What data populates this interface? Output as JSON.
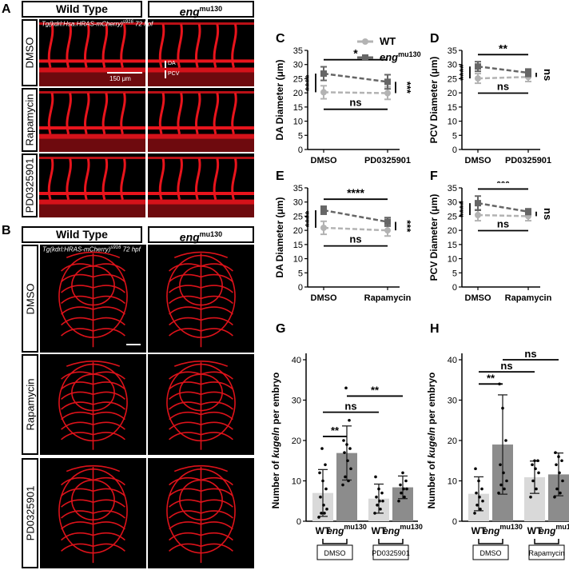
{
  "panel_letters": {
    "A": "A",
    "B": "B",
    "C": "C",
    "D": "D",
    "E": "E",
    "F": "F",
    "G": "G",
    "H": "H"
  },
  "panelA": {
    "col_headers": [
      "Wild Type",
      "eng"
    ],
    "col_header_sup": "mu130",
    "row_labels": [
      "DMSO",
      "Rapamycin",
      "PD0325901"
    ],
    "caption": "Tg(kdrl:Hsa.HRAS-mCherry)",
    "caption_sup": "s916",
    "caption_tail": "72 hpf",
    "scale_label": "150 μm",
    "da_label": "DA",
    "pcv_label": "PCV"
  },
  "panelB": {
    "col_headers": [
      "Wild Type",
      "eng"
    ],
    "col_header_sup": "mu130",
    "row_labels": [
      "DMSO",
      "Rapamycin",
      "PD0325901"
    ],
    "caption": "Tg(kdrl:HRAS-mCherry)",
    "caption_sup": "s916",
    "caption_tail": "72 hpf"
  },
  "legend": {
    "wt": "WT",
    "eng": "eng",
    "eng_sup": "mu130"
  },
  "colors": {
    "wt": "#b3b3b3",
    "eng": "#666666",
    "bar_wt": "#d9d9d9",
    "bar_eng": "#8c8c8c",
    "vessel": "#e8141c"
  },
  "chart_data": [
    {
      "id": "C",
      "type": "line",
      "ylabel": "DA Diameter (μm)",
      "ylim": [
        0,
        35
      ],
      "yticks": [
        0,
        5,
        10,
        15,
        20,
        25,
        30,
        35
      ],
      "categories": [
        "DMSO",
        "PD0325901"
      ],
      "series": [
        {
          "name": "WT",
          "values": [
            20.2,
            19.9
          ],
          "err": [
            2.3,
            2.2
          ]
        },
        {
          "name": "eng mu130",
          "values": [
            26.8,
            23.9
          ],
          "err": [
            2.4,
            2.5
          ]
        }
      ],
      "annotations": {
        "top": "*",
        "bottom": "ns",
        "left": "****",
        "right": "***"
      }
    },
    {
      "id": "D",
      "type": "line",
      "ylabel": "PCV Diameter (μm)",
      "ylim": [
        0,
        35
      ],
      "yticks": [
        0,
        5,
        10,
        15,
        20,
        25,
        30,
        35
      ],
      "categories": [
        "DMSO",
        "PD0325901"
      ],
      "series": [
        {
          "name": "WT",
          "values": [
            25.1,
            25.6
          ],
          "err": [
            1.7,
            1.6
          ]
        },
        {
          "name": "eng mu130",
          "values": [
            29.3,
            27.1
          ],
          "err": [
            1.7,
            1.3
          ]
        }
      ],
      "annotations": {
        "top": "**",
        "bottom": "ns",
        "left": "****",
        "right": "ns"
      }
    },
    {
      "id": "E",
      "type": "line",
      "ylabel": "DA Diameter (μm)",
      "ylim": [
        0,
        35
      ],
      "yticks": [
        0,
        5,
        10,
        15,
        20,
        25,
        30,
        35
      ],
      "categories": [
        "DMSO",
        "Rapamycin"
      ],
      "series": [
        {
          "name": "WT",
          "values": [
            20.9,
            20.0
          ],
          "err": [
            2.3,
            2.0
          ]
        },
        {
          "name": "eng mu130",
          "values": [
            27.1,
            23.0
          ],
          "err": [
            1.4,
            1.5
          ]
        }
      ],
      "annotations": {
        "top": "****",
        "bottom": "ns",
        "left": "****",
        "right": "***"
      }
    },
    {
      "id": "F",
      "type": "line",
      "ylabel": "PCV Diameter (μm)",
      "ylim": [
        0,
        35
      ],
      "yticks": [
        0,
        5,
        10,
        15,
        20,
        25,
        30,
        35
      ],
      "categories": [
        "DMSO",
        "Rapamycin"
      ],
      "series": [
        {
          "name": "WT",
          "values": [
            25.4,
            25.0
          ],
          "err": [
            2.0,
            1.6
          ]
        },
        {
          "name": "eng mu130",
          "values": [
            29.6,
            26.6
          ],
          "err": [
            2.5,
            1.0
          ]
        }
      ],
      "annotations": {
        "top": "***",
        "bottom": "ns",
        "left": "****",
        "right": "ns"
      }
    },
    {
      "id": "G",
      "type": "bar",
      "ylabel_pre": "Number of ",
      "ylabel_it": "kugeln",
      "ylabel_post": " per embryo",
      "ylim": [
        0,
        40
      ],
      "yticks": [
        0,
        10,
        20,
        30,
        40
      ],
      "bar_labels": [
        "WT",
        "eng",
        "WT",
        "eng"
      ],
      "bar_label_sup": "mu130",
      "groups": [
        "DMSO",
        "PD0325901"
      ],
      "values": [
        7.0,
        16.9,
        5.6,
        8.4
      ],
      "err": [
        5.8,
        6.7,
        3.6,
        2.8
      ],
      "points": [
        [
          1,
          2,
          2,
          3,
          4,
          6,
          8,
          10,
          12,
          14,
          18
        ],
        [
          9,
          10,
          11,
          13,
          15,
          17,
          18,
          19,
          20,
          25,
          33
        ],
        [
          2,
          3,
          4,
          5,
          5,
          6,
          7,
          8,
          11
        ],
        [
          5,
          6,
          7,
          8,
          8,
          9,
          10,
          12
        ]
      ],
      "comparisons": [
        {
          "a": 0,
          "b": 1,
          "y": 21,
          "label": "**"
        },
        {
          "a": 0,
          "b": 2,
          "y": 27,
          "label": "ns"
        },
        {
          "a": 1,
          "b": 3,
          "y": 31,
          "label": "**"
        }
      ]
    },
    {
      "id": "H",
      "type": "bar",
      "ylabel_pre": "Number of ",
      "ylabel_it": "kugeln",
      "ylabel_post": " per embryo",
      "ylim": [
        0,
        40
      ],
      "yticks": [
        0,
        10,
        20,
        30,
        40
      ],
      "bar_labels": [
        "WT",
        "eng",
        "WT",
        "eng"
      ],
      "bar_label_sup": "mu130",
      "groups": [
        "DMSO",
        "Rapamycin"
      ],
      "values": [
        6.8,
        19.0,
        10.9,
        11.6
      ],
      "err": [
        4.2,
        12.3,
        4.0,
        5.3
      ],
      "points": [
        [
          2,
          3,
          4,
          5,
          6,
          7,
          8,
          10,
          13
        ],
        [
          7,
          8,
          9,
          10,
          12,
          14,
          20,
          28,
          34
        ],
        [
          6,
          8,
          10,
          12,
          13,
          14,
          15,
          15
        ],
        [
          6,
          7,
          8,
          10,
          12,
          14,
          15,
          16,
          17
        ]
      ],
      "comparisons": [
        {
          "a": 0,
          "b": 1,
          "y": 34,
          "label": "**"
        },
        {
          "a": 0,
          "b": 2,
          "y": 37,
          "label": "ns"
        },
        {
          "a": 1,
          "b": 3,
          "y": 40,
          "label": "ns"
        }
      ]
    }
  ]
}
